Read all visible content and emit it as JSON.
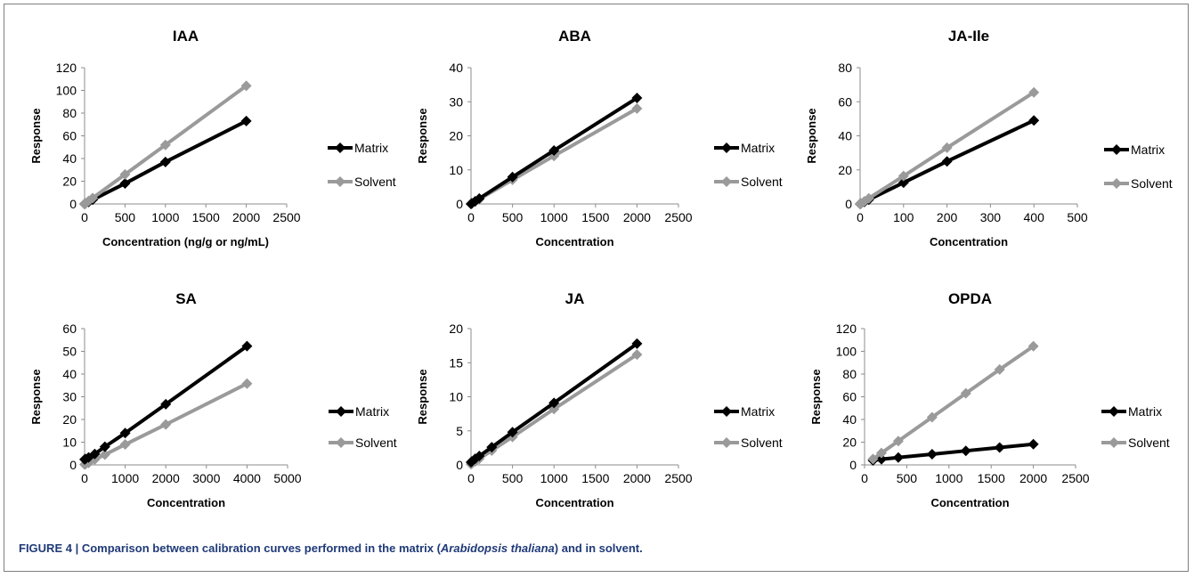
{
  "caption": {
    "prefix": "FIGURE 4 | Comparison between calibration curves performed in the matrix (",
    "species": "Arabidopsis thaliana",
    "suffix": ") and in solvent."
  },
  "colors": {
    "matrix": "#000000",
    "solvent": "#9a9a9a",
    "text": "#000000",
    "caption": "#1f3a78"
  },
  "chart_data": [
    {
      "type": "line",
      "title": "IAA",
      "xlabel": "Concentration (ng/g or ng/mL)",
      "ylabel": "Response",
      "xlim": [
        0,
        2500
      ],
      "xticks": [
        0,
        500,
        1000,
        1500,
        2000,
        2500
      ],
      "ylim": [
        0,
        120
      ],
      "yticks": [
        0,
        20,
        40,
        60,
        80,
        100,
        120
      ],
      "grid": false,
      "legend": "right",
      "series": [
        {
          "name": "Matrix",
          "color": "#000000",
          "x": [
            0,
            10,
            50,
            100,
            500,
            1000,
            2000
          ],
          "y": [
            0,
            0.4,
            1.8,
            3.7,
            18,
            37,
            73
          ]
        },
        {
          "name": "Solvent",
          "color": "#9a9a9a",
          "x": [
            0,
            10,
            50,
            100,
            500,
            1000,
            2000
          ],
          "y": [
            0,
            0.5,
            2.6,
            5.2,
            26,
            52,
            104
          ]
        }
      ]
    },
    {
      "type": "line",
      "title": "ABA",
      "xlabel": "Concentration",
      "ylabel": "Response",
      "xlim": [
        0,
        2500
      ],
      "xticks": [
        0,
        500,
        1000,
        1500,
        2000,
        2500
      ],
      "ylim": [
        0,
        40
      ],
      "yticks": [
        0,
        10,
        20,
        30,
        40
      ],
      "grid": false,
      "legend": "right",
      "series": [
        {
          "name": "Matrix",
          "color": "#000000",
          "x": [
            0,
            10,
            50,
            100,
            500,
            1000,
            2000
          ],
          "y": [
            0,
            0.2,
            0.8,
            1.6,
            7.9,
            15.7,
            31.1
          ]
        },
        {
          "name": "Solvent",
          "color": "#9a9a9a",
          "x": [
            0,
            10,
            50,
            100,
            500,
            1000,
            2000
          ],
          "y": [
            0,
            0.1,
            0.7,
            1.4,
            7.1,
            14.1,
            28.0
          ]
        }
      ]
    },
    {
      "type": "line",
      "title": "JA-Ile",
      "xlabel": "Concentration",
      "ylabel": "Response",
      "xlim": [
        0,
        500
      ],
      "xticks": [
        0,
        100,
        200,
        300,
        400,
        500
      ],
      "ylim": [
        0,
        80
      ],
      "yticks": [
        0,
        20,
        40,
        60,
        80
      ],
      "grid": false,
      "legend": "right",
      "series": [
        {
          "name": "Matrix",
          "color": "#000000",
          "x": [
            0,
            2,
            10,
            20,
            100,
            200,
            400
          ],
          "y": [
            0,
            0.25,
            1.2,
            2.5,
            12.5,
            25,
            49
          ]
        },
        {
          "name": "Solvent",
          "color": "#9a9a9a",
          "x": [
            0,
            2,
            10,
            20,
            100,
            200,
            400
          ],
          "y": [
            0,
            0.33,
            1.6,
            3.3,
            16.4,
            33,
            65.5
          ]
        }
      ]
    },
    {
      "type": "line",
      "title": "SA",
      "xlabel": "Concentration",
      "ylabel": "Response",
      "xlim": [
        0,
        5000
      ],
      "xticks": [
        0,
        1000,
        2000,
        3000,
        4000,
        5000
      ],
      "ylim": [
        0,
        60
      ],
      "yticks": [
        0,
        10,
        20,
        30,
        40,
        50,
        60
      ],
      "grid": false,
      "legend": "right",
      "series": [
        {
          "name": "Matrix",
          "color": "#000000",
          "x": [
            0,
            20,
            100,
            250,
            500,
            1000,
            2000,
            4000
          ],
          "y": [
            2.4,
            2.6,
            3.3,
            4.8,
            8.0,
            14.0,
            26.7,
            52.3
          ]
        },
        {
          "name": "Solvent",
          "color": "#9a9a9a",
          "x": [
            0,
            20,
            100,
            250,
            500,
            1000,
            2000,
            4000
          ],
          "y": [
            0.2,
            0.3,
            0.9,
            2.4,
            4.5,
            9.0,
            17.8,
            35.8
          ]
        }
      ]
    },
    {
      "type": "line",
      "title": "JA",
      "xlabel": "Concentration",
      "ylabel": "Response",
      "xlim": [
        0,
        2500
      ],
      "xticks": [
        0,
        500,
        1000,
        1500,
        2000,
        2500
      ],
      "ylim": [
        0,
        20
      ],
      "yticks": [
        0,
        5,
        10,
        15,
        20
      ],
      "grid": false,
      "legend": "right",
      "series": [
        {
          "name": "Matrix",
          "color": "#000000",
          "x": [
            0,
            10,
            50,
            100,
            250,
            500,
            1000,
            2000
          ],
          "y": [
            0.4,
            0.5,
            0.9,
            1.3,
            2.6,
            4.8,
            9.1,
            17.8
          ]
        },
        {
          "name": "Solvent",
          "color": "#9a9a9a",
          "x": [
            0,
            10,
            50,
            100,
            250,
            500,
            1000,
            2000
          ],
          "y": [
            0.1,
            0.2,
            0.5,
            0.9,
            2.1,
            4.1,
            8.2,
            16.2
          ]
        }
      ]
    },
    {
      "type": "line",
      "title": "OPDA",
      "xlabel": "Concentration",
      "ylabel": "Response",
      "xlim": [
        0,
        2500
      ],
      "xticks": [
        0,
        500,
        1000,
        1500,
        2000,
        2500
      ],
      "ylim": [
        0,
        120
      ],
      "yticks": [
        0,
        20,
        40,
        60,
        80,
        100,
        120
      ],
      "grid": false,
      "legend": "right",
      "series": [
        {
          "name": "Matrix",
          "color": "#000000",
          "x": [
            100,
            200,
            400,
            800,
            1200,
            1600,
            2000
          ],
          "y": [
            3.9,
            5.0,
            6.5,
            9.4,
            12.4,
            15.3,
            18.2
          ]
        },
        {
          "name": "Solvent",
          "color": "#9a9a9a",
          "x": [
            100,
            200,
            400,
            800,
            1200,
            1600,
            2000
          ],
          "y": [
            5.2,
            10.5,
            21.0,
            42.0,
            63.0,
            84.0,
            104.5
          ]
        }
      ]
    }
  ]
}
